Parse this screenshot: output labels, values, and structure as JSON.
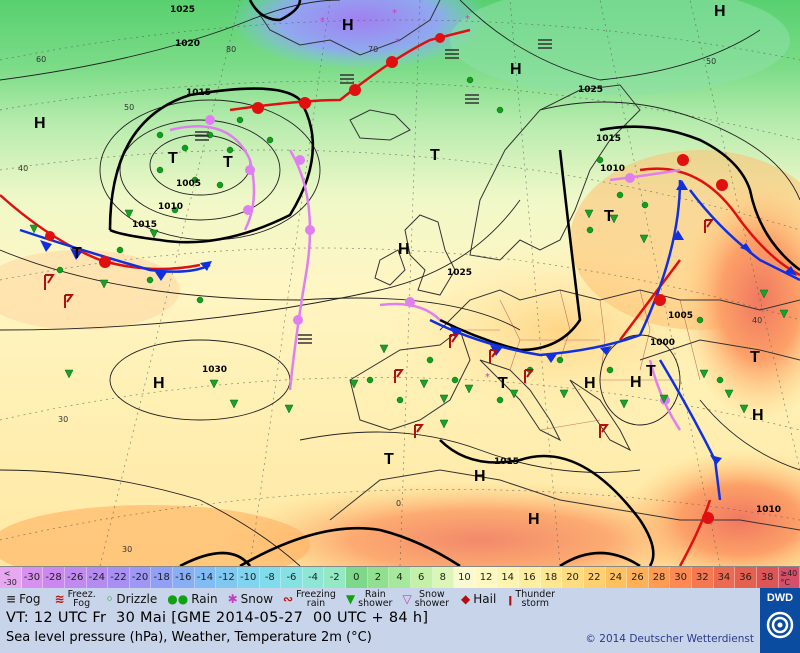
{
  "map": {
    "pressure_centers": [
      {
        "label": "H",
        "kind": "high"
      },
      {
        "label": "H",
        "kind": "high"
      },
      {
        "label": "H",
        "kind": "high"
      },
      {
        "label": "H",
        "kind": "high"
      },
      {
        "label": "H",
        "kind": "high"
      },
      {
        "label": "H",
        "kind": "high"
      },
      {
        "label": "H",
        "kind": "high"
      },
      {
        "label": "H",
        "kind": "high"
      },
      {
        "label": "H",
        "kind": "high"
      },
      {
        "label": "H",
        "kind": "high"
      },
      {
        "label": "H",
        "kind": "high"
      },
      {
        "label": "T",
        "kind": "low"
      },
      {
        "label": "T",
        "kind": "low"
      },
      {
        "label": "T",
        "kind": "low"
      },
      {
        "label": "T",
        "kind": "low"
      },
      {
        "label": "T",
        "kind": "low"
      },
      {
        "label": "T",
        "kind": "low"
      },
      {
        "label": "T",
        "kind": "low"
      },
      {
        "label": "T",
        "kind": "low"
      },
      {
        "label": "T",
        "kind": "low"
      }
    ],
    "isobar_labels": [
      "1025",
      "1020",
      "1015",
      "1005",
      "1010",
      "1015",
      "1030",
      "1025",
      "1015",
      "1010",
      "1025",
      "1005",
      "1000",
      "1015",
      "1010"
    ],
    "latitude_labels": [
      "80",
      "70",
      "60",
      "50",
      "40",
      "30",
      "0",
      "50",
      "40",
      "30"
    ],
    "colors": {
      "cold_front": "#1030e0",
      "warm_front": "#e01010",
      "occlusion": "#e080f0",
      "precip_green": "#10a010",
      "thunder": "#b01010"
    }
  },
  "temperature_scale": [
    {
      "label": "<\n-30",
      "color": "#e6a8f0"
    },
    {
      "label": "-30",
      "color": "#d890ee"
    },
    {
      "label": "-28",
      "color": "#cc88ee"
    },
    {
      "label": "-26",
      "color": "#c08aee"
    },
    {
      "label": "-24",
      "color": "#b48cf0"
    },
    {
      "label": "-22",
      "color": "#a890f2"
    },
    {
      "label": "-20",
      "color": "#9c98f4"
    },
    {
      "label": "-18",
      "color": "#90a0f4"
    },
    {
      "label": "-16",
      "color": "#88aef4"
    },
    {
      "label": "-14",
      "color": "#82bcf4"
    },
    {
      "label": "-12",
      "color": "#80c8f0"
    },
    {
      "label": "-10",
      "color": "#80d4ee"
    },
    {
      "label": "-8",
      "color": "#80dcea"
    },
    {
      "label": "-6",
      "color": "#86e2e2"
    },
    {
      "label": "-4",
      "color": "#8ee6d4"
    },
    {
      "label": "-2",
      "color": "#94e8c4"
    },
    {
      "label": "0",
      "color": "#7ed88a"
    },
    {
      "label": "2",
      "color": "#90e090"
    },
    {
      "label": "4",
      "color": "#a8e89c"
    },
    {
      "label": "6",
      "color": "#c4f0a8"
    },
    {
      "label": "8",
      "color": "#dcf6b8"
    },
    {
      "label": "10",
      "color": "#fafad2"
    },
    {
      "label": "12",
      "color": "#fff8c0"
    },
    {
      "label": "14",
      "color": "#fff4b0"
    },
    {
      "label": "16",
      "color": "#ffeea0"
    },
    {
      "label": "18",
      "color": "#ffe690"
    },
    {
      "label": "20",
      "color": "#ffdc80"
    },
    {
      "label": "22",
      "color": "#ffd070"
    },
    {
      "label": "24",
      "color": "#ffc060"
    },
    {
      "label": "26",
      "color": "#ffb058"
    },
    {
      "label": "28",
      "color": "#ff9c54"
    },
    {
      "label": "30",
      "color": "#fc8a52"
    },
    {
      "label": "32",
      "color": "#f47850"
    },
    {
      "label": "34",
      "color": "#ec6a50"
    },
    {
      "label": "36",
      "color": "#e46050"
    },
    {
      "label": "38",
      "color": "#dc5658"
    },
    {
      "label": "≥40\n°C",
      "color": "#d4506a"
    }
  ],
  "legend": {
    "fog": "Fog",
    "freezing_fog": "Freez.\nFog",
    "drizzle": "Drizzle",
    "rain": "Rain",
    "snow": "Snow",
    "freezing_rain": "Freezing\nrain",
    "rain_shower": "Rain\nshower",
    "snow_shower": "Snow\nshower",
    "hail": "Hail",
    "thunderstorm": "Thunder\nstorm"
  },
  "info": {
    "valid_time": "VT: 12 UTC Fr  30 Mai [GME 2014-05-27  00 UTC + 84 h]",
    "description": "Sea level pressure (hPa), Weather, Temperature 2m (°C)",
    "copyright": "© 2014 Deutscher Wetterdienst",
    "logo_text": "DWD"
  }
}
